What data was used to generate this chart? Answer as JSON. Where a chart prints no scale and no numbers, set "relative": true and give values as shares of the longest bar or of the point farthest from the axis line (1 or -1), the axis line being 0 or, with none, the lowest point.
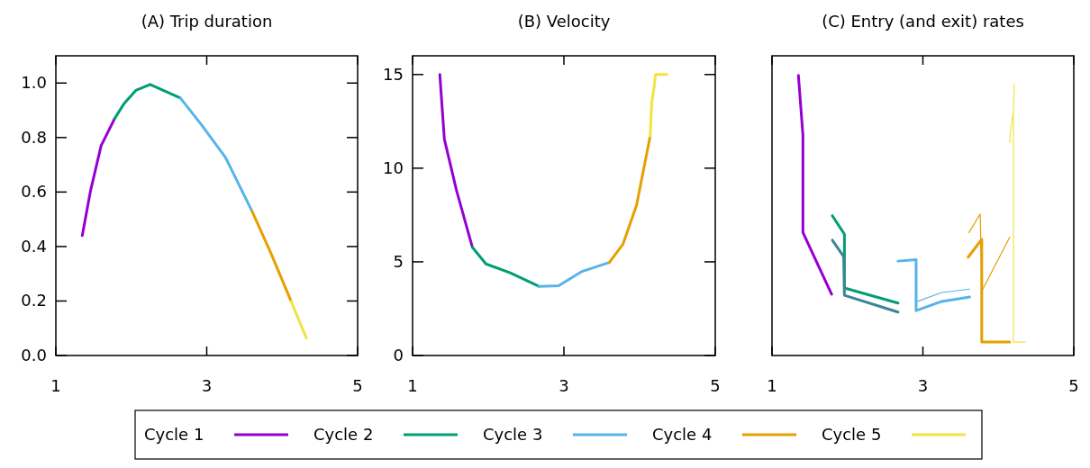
{
  "chart_data": [
    {
      "type": "line",
      "title": "(A) Trip duration",
      "xlim": [
        1,
        5
      ],
      "xticks": [
        1,
        3,
        5
      ],
      "ylim": [
        0,
        1.1
      ],
      "yticks": [
        {
          "value": 0,
          "label": "0.0"
        },
        {
          "value": 0.2,
          "label": "0.2"
        },
        {
          "value": 0.4,
          "label": "0.4"
        },
        {
          "value": 0.6,
          "label": "0.6"
        },
        {
          "value": 0.8,
          "label": "0.8"
        },
        {
          "value": 1,
          "label": "1.0"
        }
      ],
      "legend": "bottom",
      "series": [
        {
          "name": "Cycle 1",
          "color": "#9400d3",
          "x": [
            1.35,
            1.46,
            1.6,
            1.78
          ],
          "values": [
            0.44,
            0.605,
            0.77,
            0.87
          ]
        },
        {
          "name": "Cycle 2",
          "color": "#009e73",
          "x": [
            1.78,
            1.9,
            2.06,
            2.25,
            2.65
          ],
          "values": [
            0.87,
            0.923,
            0.973,
            0.995,
            0.945
          ]
        },
        {
          "name": "Cycle 3",
          "color": "#56b4e9",
          "x": [
            2.65,
            2.93,
            3.25,
            3.6
          ],
          "values": [
            0.945,
            0.847,
            0.726,
            0.53
          ]
        },
        {
          "name": "Cycle 4",
          "color": "#e69f00",
          "x": [
            3.6,
            3.85,
            4.12
          ],
          "values": [
            0.53,
            0.376,
            0.198
          ]
        },
        {
          "name": "Cycle 5",
          "color": "#f0e442",
          "x": [
            4.12,
            4.32
          ],
          "values": [
            0.198,
            0.064
          ]
        }
      ]
    },
    {
      "type": "line",
      "title": "(B) Velocity",
      "xlim": [
        1,
        5
      ],
      "xticks": [
        1,
        3,
        5
      ],
      "ylim": [
        0,
        16
      ],
      "yticks": [
        0,
        5,
        10,
        15
      ],
      "series": [
        {
          "color": "#9400d3",
          "x": [
            1.36,
            1.42,
            1.58,
            1.79
          ],
          "values": [
            15,
            11.55,
            8.82,
            5.78
          ]
        },
        {
          "color": "#009e73",
          "x": [
            1.79,
            1.97,
            2.29,
            2.67
          ],
          "values": [
            5.78,
            4.89,
            4.41,
            3.69
          ]
        },
        {
          "color": "#56b4e9",
          "x": [
            2.67,
            2.93,
            3.24,
            3.6
          ],
          "values": [
            3.69,
            3.72,
            4.49,
            4.97
          ]
        },
        {
          "color": "#e69f00",
          "x": [
            3.6,
            3.78,
            3.96,
            4.14
          ],
          "values": [
            4.97,
            5.94,
            8.02,
            11.71
          ]
        },
        {
          "color": "#f0e442",
          "x": [
            4.14,
            4.16,
            4.19,
            4.21,
            4.36
          ],
          "values": [
            11.71,
            13.48,
            14.28,
            15,
            15
          ]
        }
      ]
    },
    {
      "type": "line",
      "title": "(C) Entry (and exit) rates",
      "xlim": [
        1,
        5
      ],
      "xticks": [
        1,
        3,
        5
      ],
      "relative": true,
      "tick_labels": "x",
      "series": [
        {
          "color": "#9400d3",
          "x": [
            1.35,
            1.41,
            1.41,
            1.79
          ],
          "values": [
            1,
            0.786,
            0.439,
            0.219
          ]
        },
        {
          "color": "#009e73",
          "x": [
            1.8,
            1.96,
            1.96,
            2.67
          ],
          "values": [
            0.499,
            0.433,
            0.241,
            0.187
          ]
        },
        {
          "color": "#56b4e9",
          "x": [
            2.67,
            2.91,
            2.91,
            3.25,
            3.62
          ],
          "values": [
            0.337,
            0.342,
            0.16,
            0.193,
            0.209
          ]
        },
        {
          "color": "#e69f00",
          "x": [
            3.6,
            3.78,
            3.78,
            4.15
          ],
          "values": [
            0.351,
            0.415,
            0.048,
            0.048
          ]
        },
        {
          "color": "#3b8596",
          "x": [
            1.8,
            1.95,
            1.96,
            2.67
          ],
          "values": [
            0.412,
            0.353,
            0.215,
            0.155
          ]
        },
        {
          "color": "#56b4e9",
          "x": [
            2.93,
            3.25,
            3.62
          ],
          "values": [
            0.193,
            0.225,
            0.237
          ]
        },
        {
          "color": "#e69f00",
          "x": [
            3.61,
            3.76,
            3.78,
            4.15
          ],
          "values": [
            0.439,
            0.505,
            0.23,
            0.422
          ]
        },
        {
          "color": "#f0e442",
          "x": [
            4.15,
            4.16,
            4.2,
            4.21,
            4.2,
            4.2,
            4.36
          ],
          "values": [
            0.76,
            0.8,
            0.87,
            0.97,
            0.87,
            0.048,
            0.048
          ]
        }
      ]
    }
  ]
}
